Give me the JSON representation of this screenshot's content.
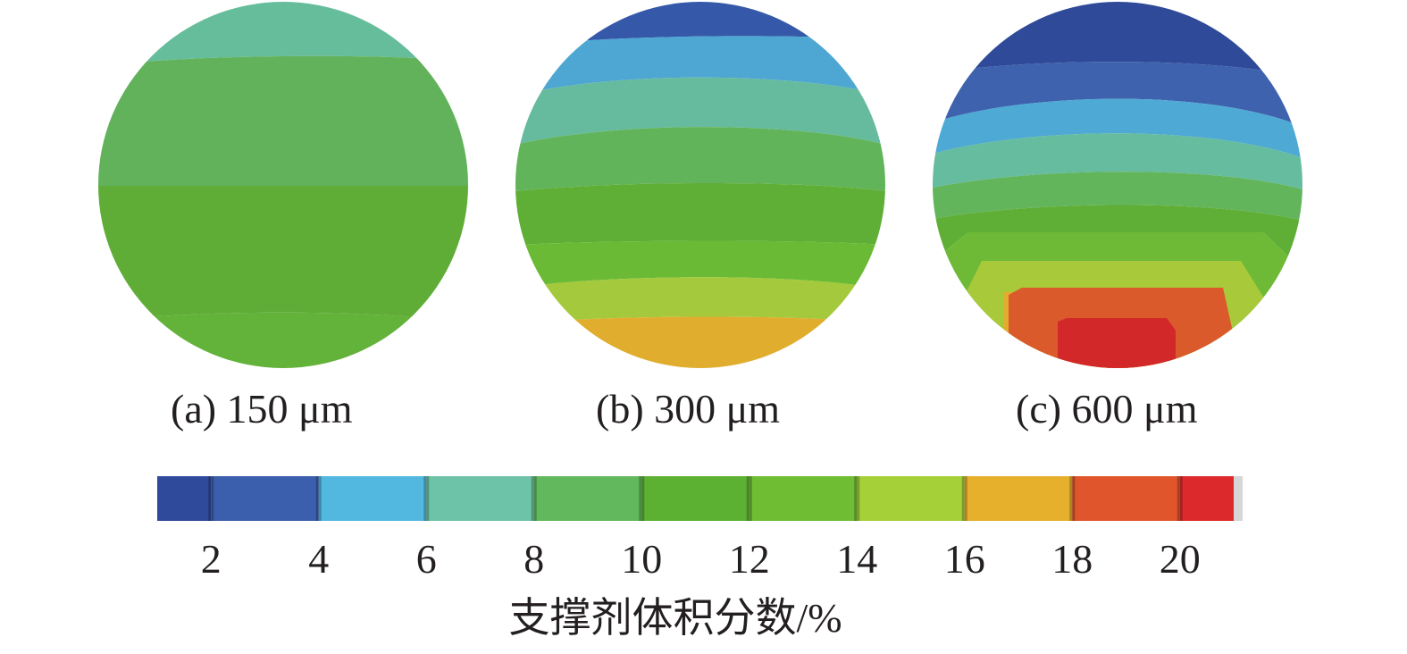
{
  "panels": [
    {
      "label": "(a) 150 μm",
      "bands": [
        {
          "level": 7,
          "color": "#66bd9c"
        },
        {
          "level": 9,
          "color": "#62b25b"
        },
        {
          "level": 11,
          "color": "#5fac37"
        },
        {
          "level": 12,
          "color": "#63b23a"
        }
      ]
    },
    {
      "label": "(b) 300 μm",
      "bands": [
        {
          "level": 3,
          "color": "#3559a8"
        },
        {
          "level": 5,
          "color": "#4ea7d2"
        },
        {
          "level": 7,
          "color": "#66bb9e"
        },
        {
          "level": 9,
          "color": "#62b45a"
        },
        {
          "level": 11,
          "color": "#5fae36"
        },
        {
          "level": 13,
          "color": "#6aba36"
        },
        {
          "level": 15,
          "color": "#a5c93c"
        },
        {
          "level": 17,
          "color": "#e0ad2e"
        }
      ]
    },
    {
      "label": "(c) 600 μm",
      "bands": [
        {
          "level": 1,
          "color": "#2f4a98"
        },
        {
          "level": 3,
          "color": "#3e62ad"
        },
        {
          "level": 5,
          "color": "#4ea9d4"
        },
        {
          "level": 7,
          "color": "#66bc9e"
        },
        {
          "level": 9,
          "color": "#62b55b"
        },
        {
          "level": 11,
          "color": "#5fae36"
        },
        {
          "level": 13,
          "color": "#6eba37"
        },
        {
          "level": 15,
          "color": "#a8c93a"
        },
        {
          "level": 17,
          "color": "#e2ac2e"
        },
        {
          "level": 19,
          "color": "#da5a2c"
        },
        {
          "level": 21,
          "color": "#d3282a"
        }
      ]
    }
  ],
  "colorbar": {
    "title": "支撑剂体积分数/%",
    "min": 1,
    "max": 21,
    "ticks": [
      "2",
      "4",
      "6",
      "8",
      "10",
      "12",
      "14",
      "16",
      "18",
      "20"
    ],
    "tick_values": [
      2,
      4,
      6,
      8,
      10,
      12,
      14,
      16,
      18,
      20
    ],
    "segments": [
      {
        "from": 1,
        "to": 2,
        "color": "#2f4a9a"
      },
      {
        "from": 2,
        "to": 4,
        "color": "#3b5fac"
      },
      {
        "from": 4,
        "to": 6,
        "color": "#53b8e0"
      },
      {
        "from": 6,
        "to": 8,
        "color": "#6cc3a7"
      },
      {
        "from": 8,
        "to": 10,
        "color": "#62b85c"
      },
      {
        "from": 10,
        "to": 12,
        "color": "#5cb133"
      },
      {
        "from": 12,
        "to": 14,
        "color": "#6ebd33"
      },
      {
        "from": 14,
        "to": 16,
        "color": "#a6d037"
      },
      {
        "from": 16,
        "to": 18,
        "color": "#e7b02c"
      },
      {
        "from": 18,
        "to": 20,
        "color": "#e0552b"
      },
      {
        "from": 20,
        "to": 21,
        "color": "#dc2a2c"
      }
    ]
  }
}
